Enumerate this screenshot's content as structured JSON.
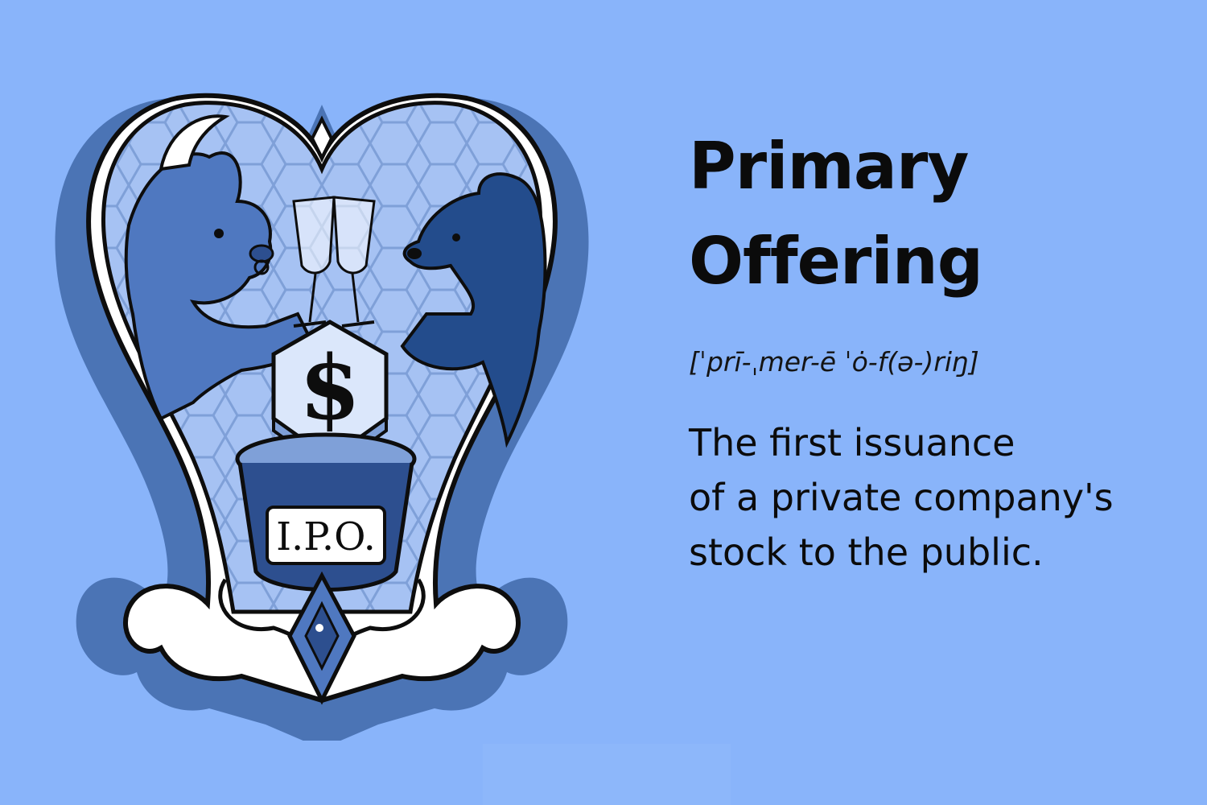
{
  "term": {
    "title_lines": [
      "Primary",
      "Offering"
    ],
    "pronunciation": "[ˈprī-ˌmer-ē ˈȯ-f(ə-)riŋ]",
    "definition_lines": [
      "The first issuance",
      "of a private company's",
      "stock to the public."
    ]
  },
  "illustration": {
    "dollar_symbol": "$",
    "pedestal_label": "I.P.O."
  },
  "colors": {
    "background": "#89b4fa",
    "frame_outer": "#4b74b5",
    "frame_white": "#ffffff",
    "frame_ink": "#0d0d0d",
    "bull": "#4f78c0",
    "bear": "#234c8c",
    "honeycomb_fill": "#a6c2f3",
    "honeycomb_line": "#7fa0d8",
    "text": "#0b0b0b"
  },
  "icons": [
    "bull-icon",
    "bear-icon",
    "champagne-glass-icon",
    "dollar-gem-icon",
    "ipo-pedestal-icon",
    "diamond-ornament-icon"
  ]
}
